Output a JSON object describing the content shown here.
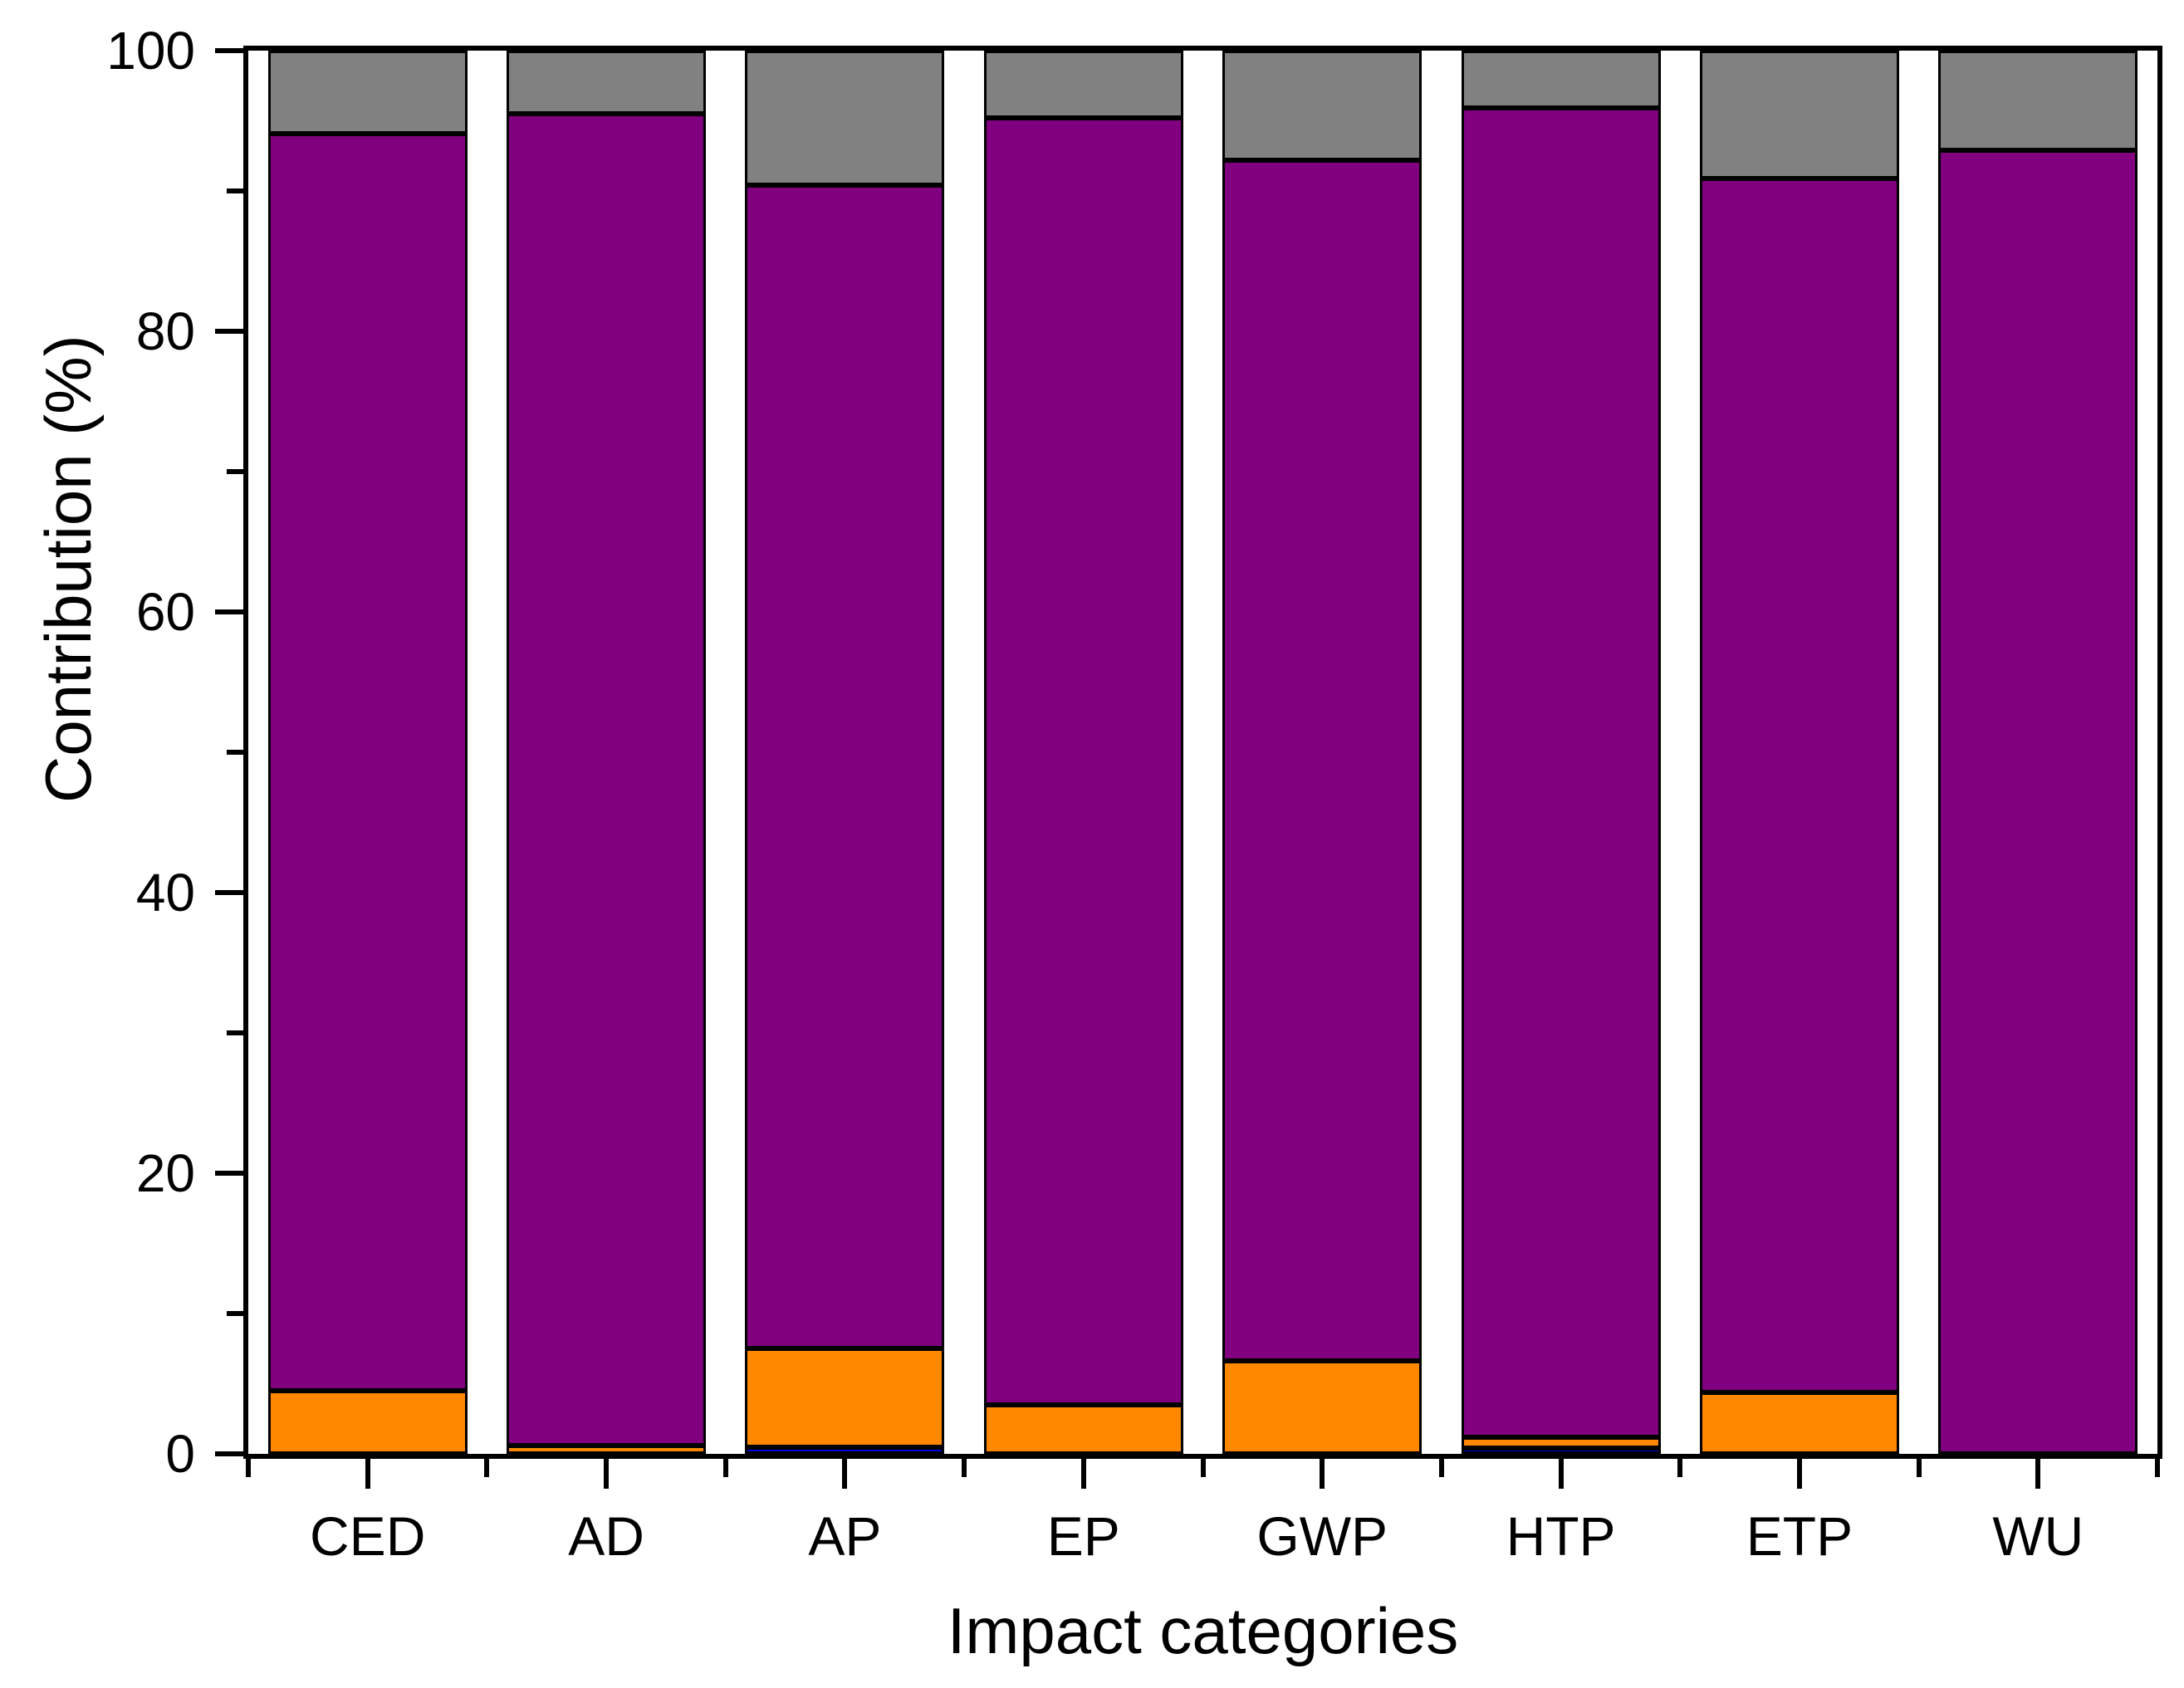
{
  "figure": {
    "background": "#ffffff",
    "axis_color": "#000000"
  },
  "chart_data": {
    "type": "bar",
    "stacked": true,
    "title": "",
    "xlabel": "Impact categories",
    "ylabel": "Contribution (%)",
    "categories": [
      "CED",
      "AD",
      "AP",
      "EP",
      "GWP",
      "HTP",
      "ETP",
      "WU"
    ],
    "series": [
      {
        "name": "blue-segment",
        "color": "#0000E0",
        "values": [
          0,
          0,
          0.5,
          0,
          0,
          0.4,
          0,
          0
        ]
      },
      {
        "name": "orange-segment",
        "color": "#FF8800",
        "values": [
          4.5,
          0.6,
          7.0,
          3.5,
          6.6,
          0.8,
          4.4,
          0
        ]
      },
      {
        "name": "purple-segment",
        "color": "#800080",
        "values": [
          89.6,
          94.9,
          82.9,
          91.7,
          85.6,
          94.7,
          86.5,
          92.9
        ]
      },
      {
        "name": "gray-segment",
        "color": "#818181",
        "values": [
          5.9,
          4.5,
          9.6,
          4.8,
          7.8,
          4.1,
          9.1,
          7.1
        ]
      }
    ],
    "ylim": [
      0,
      100
    ],
    "yticks_major": [
      0,
      20,
      40,
      60,
      80,
      100
    ],
    "yticks_minor": [
      10,
      30,
      50,
      70,
      90
    ],
    "grid": false,
    "legend": "none",
    "bar_outline_color": "#000000"
  }
}
